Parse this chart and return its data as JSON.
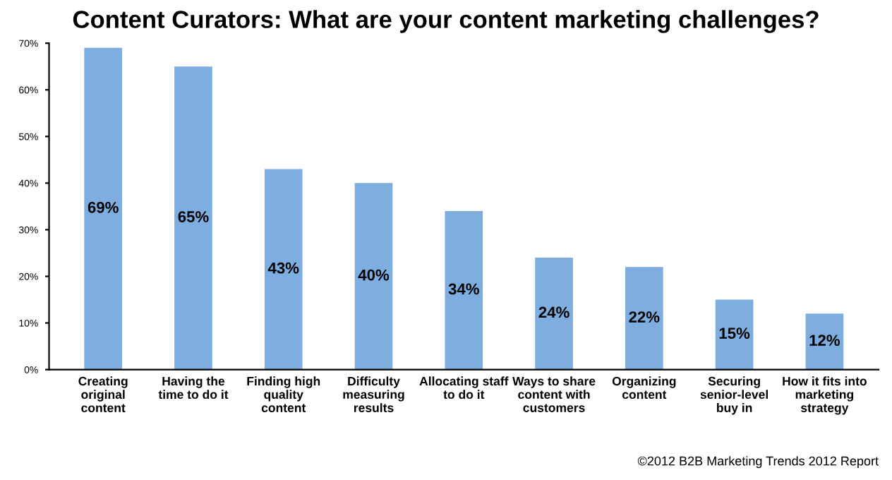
{
  "chart_data": {
    "type": "bar",
    "title": "Content Curators: What are your content marketing challenges?",
    "categories": [
      "Creating\noriginal\ncontent",
      "Having the\ntime to do it",
      "Finding high\nquality\ncontent",
      "Difficulty\nmeasuring\nresults",
      "Allocating staff\nto do it",
      "Ways to share\ncontent with\ncustomers",
      "Organizing\ncontent",
      "Securing\nsenior-level\nbuy in",
      "How it fits into\nmarketing\nstrategy"
    ],
    "values": [
      69,
      65,
      43,
      40,
      34,
      24,
      22,
      15,
      12
    ],
    "value_labels": [
      "69%",
      "65%",
      "43%",
      "40%",
      "34%",
      "24%",
      "22%",
      "15%",
      "12%"
    ],
    "color": "#7eaee0",
    "ylim": [
      0,
      70
    ],
    "yticks": [
      {
        "value": 0,
        "label": "0%"
      },
      {
        "value": 10,
        "label": "10%"
      },
      {
        "value": 20,
        "label": "20%"
      },
      {
        "value": 30,
        "label": "30%"
      },
      {
        "value": 40,
        "label": "40%"
      },
      {
        "value": 50,
        "label": "50%"
      },
      {
        "value": 60,
        "label": "60%"
      },
      {
        "value": 70,
        "label": "70%"
      }
    ],
    "grid": false,
    "annotations": [
      "©2012 B2B Marketing Trends 2012 Report"
    ]
  }
}
